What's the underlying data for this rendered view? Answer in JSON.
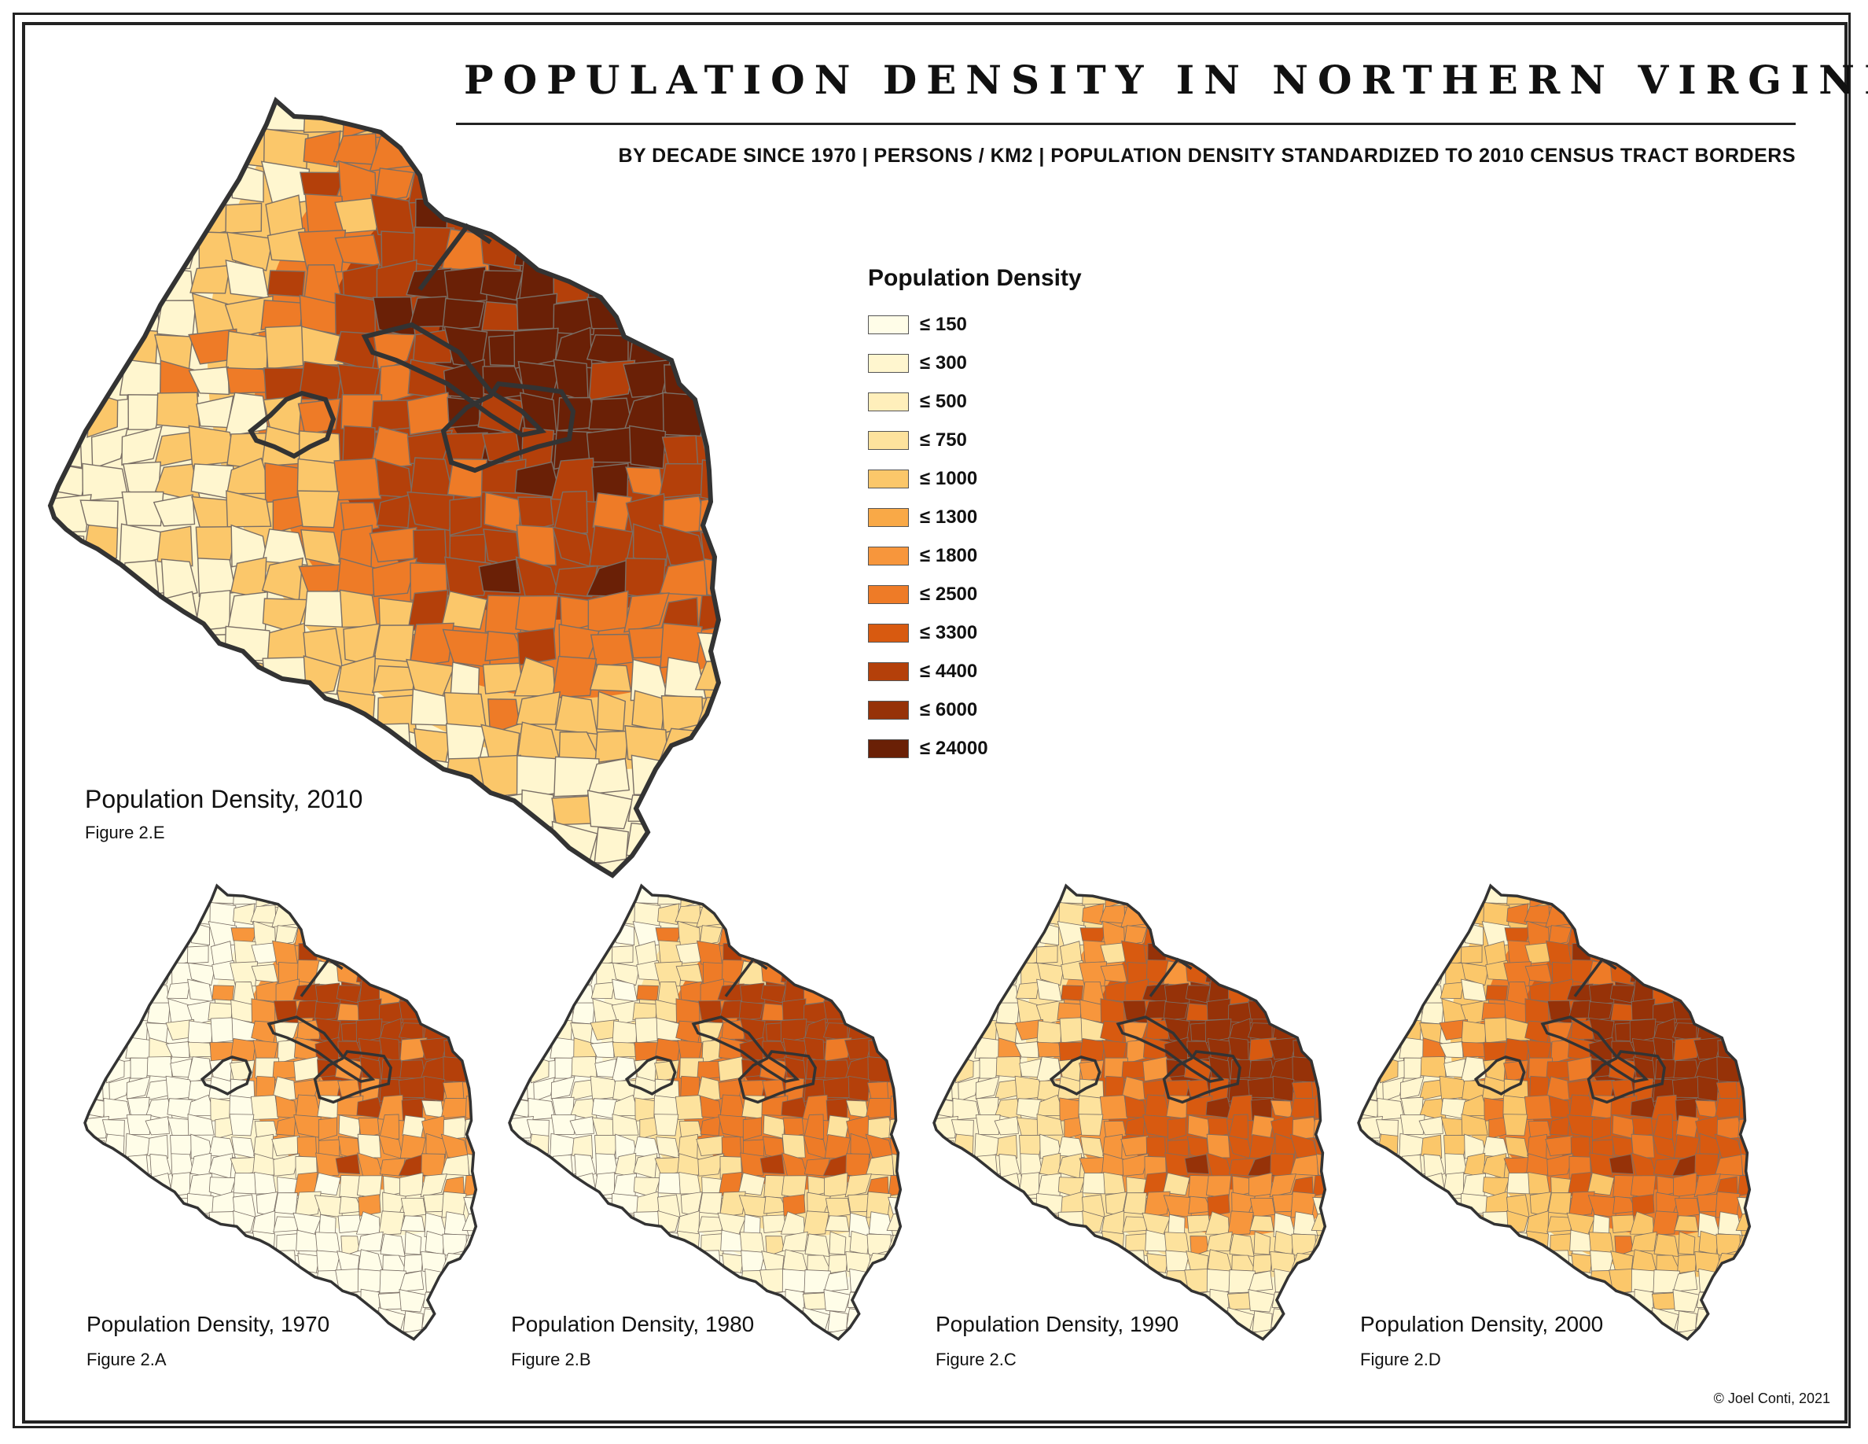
{
  "title": "POPULATION DENSITY IN NORTHERN VIRGINIA",
  "subtitle": "BY DECADE SINCE 1970 | PERSONS / KM2 | POPULATION DENSITY STANDARDIZED TO 2010 CENSUS TRACT BORDERS",
  "legend": {
    "title": "Population Density",
    "classes": [
      {
        "label": "≤ 150",
        "color": "#fffde8"
      },
      {
        "label": "≤ 300",
        "color": "#fff6cf"
      },
      {
        "label": "≤ 500",
        "color": "#ffefbb"
      },
      {
        "label": "≤ 750",
        "color": "#fde29d"
      },
      {
        "label": "≤ 1000",
        "color": "#fbc76a"
      },
      {
        "label": "≤ 1300",
        "color": "#f9a947"
      },
      {
        "label": "≤ 1800",
        "color": "#f7963c"
      },
      {
        "label": "≤ 2500",
        "color": "#ee7b27"
      },
      {
        "label": "≤ 3300",
        "color": "#d85a10"
      },
      {
        "label": "≤ 4400",
        "color": "#b4400a"
      },
      {
        "label": "≤ 6000",
        "color": "#963208"
      },
      {
        "label": "≤ 24000",
        "color": "#6a2006"
      }
    ]
  },
  "maps": [
    {
      "year": "2010",
      "label": "Population Density, 2010",
      "figure": "Figure 2.E",
      "class_levels": [
        1,
        4,
        7,
        9,
        11
      ]
    },
    {
      "year": "1970",
      "label": "Population Density, 1970",
      "figure": "Figure 2.A",
      "class_levels": [
        0,
        0,
        1,
        6,
        9
      ]
    },
    {
      "year": "1980",
      "label": "Population Density, 1980",
      "figure": "Figure 2.B",
      "class_levels": [
        0,
        1,
        3,
        7,
        9
      ]
    },
    {
      "year": "1990",
      "label": "Population Density, 1990",
      "figure": "Figure 2.C",
      "class_levels": [
        1,
        3,
        6,
        8,
        10
      ]
    },
    {
      "year": "2000",
      "label": "Population Density, 2000",
      "figure": "Figure 2.D",
      "class_levels": [
        1,
        4,
        7,
        8,
        10
      ]
    }
  ],
  "copyright": "© Joel Conti, 2021"
}
